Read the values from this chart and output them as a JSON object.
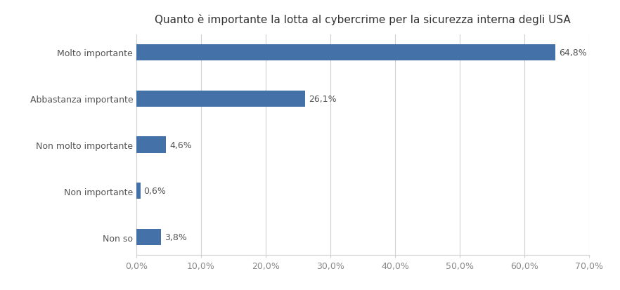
{
  "title": "Quanto è importante la lotta al cybercrime per la sicurezza interna degli USA",
  "categories": [
    "Non so",
    "Non importante",
    "Non molto importante",
    "Abbastanza importante",
    "Molto importante"
  ],
  "values": [
    3.8,
    0.6,
    4.6,
    26.1,
    64.8
  ],
  "labels": [
    "3,8%",
    "0,6%",
    "4,6%",
    "26,1%",
    "64,8%"
  ],
  "bar_color": "#4472a8",
  "background_color": "#ffffff",
  "xlim": [
    0,
    70
  ],
  "xticks": [
    0,
    10,
    20,
    30,
    40,
    50,
    60,
    70
  ],
  "xtick_labels": [
    "0,0%",
    "10,0%",
    "20,0%",
    "30,0%",
    "40,0%",
    "50,0%",
    "60,0%",
    "70,0%"
  ],
  "title_fontsize": 11,
  "label_fontsize": 9,
  "tick_fontsize": 9,
  "bar_height": 0.35
}
